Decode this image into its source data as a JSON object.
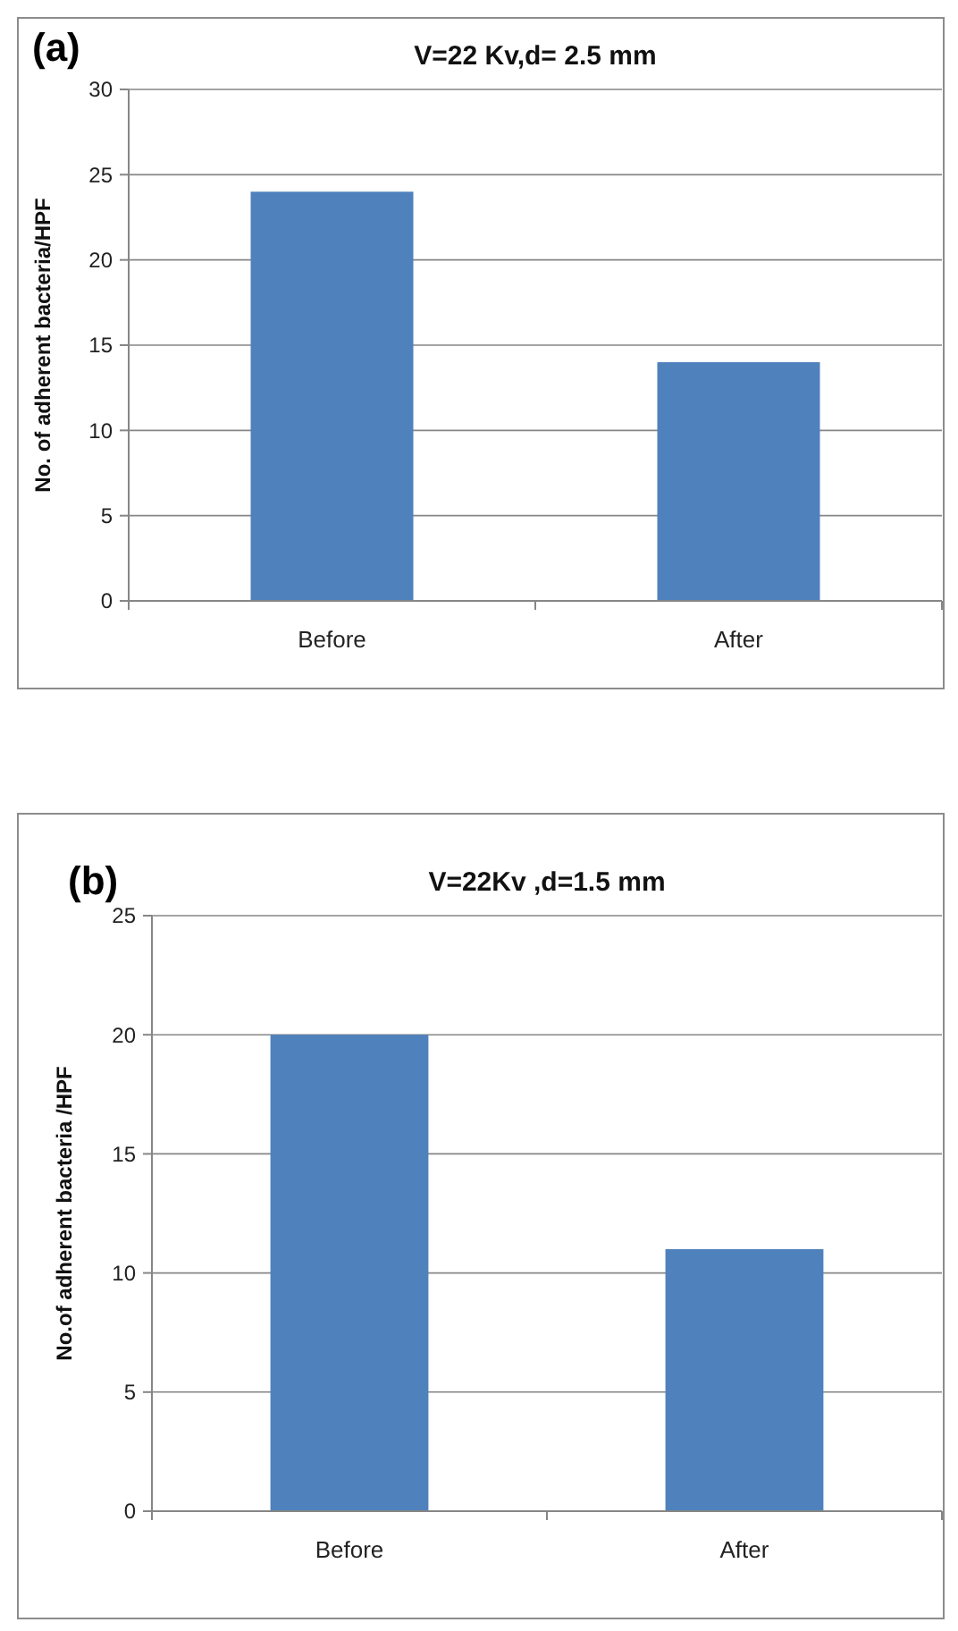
{
  "chart_data": [
    {
      "type": "bar",
      "title": "V=22 Kv,d= 2.5 mm",
      "ylabel": "No. of adherent bacteria/HPF",
      "annotations": [
        "(a)"
      ],
      "categories": [
        "Before",
        "After"
      ],
      "values": [
        24,
        14
      ],
      "color": "#4f81bd",
      "ylim": [
        0,
        30
      ],
      "yticks": [
        0,
        5,
        10,
        15,
        20,
        25,
        30
      ],
      "grid": "y"
    },
    {
      "type": "bar",
      "title": "V=22Kv ,d=1.5 mm",
      "ylabel": "No.of adherent bacteria /HPF",
      "annotations": [
        "(b)"
      ],
      "categories": [
        "Before",
        "After"
      ],
      "values": [
        20,
        11
      ],
      "color": "#4f81bd",
      "ylim": [
        0,
        25
      ],
      "yticks": [
        0,
        5,
        10,
        15,
        20,
        25
      ],
      "grid": "y"
    }
  ]
}
